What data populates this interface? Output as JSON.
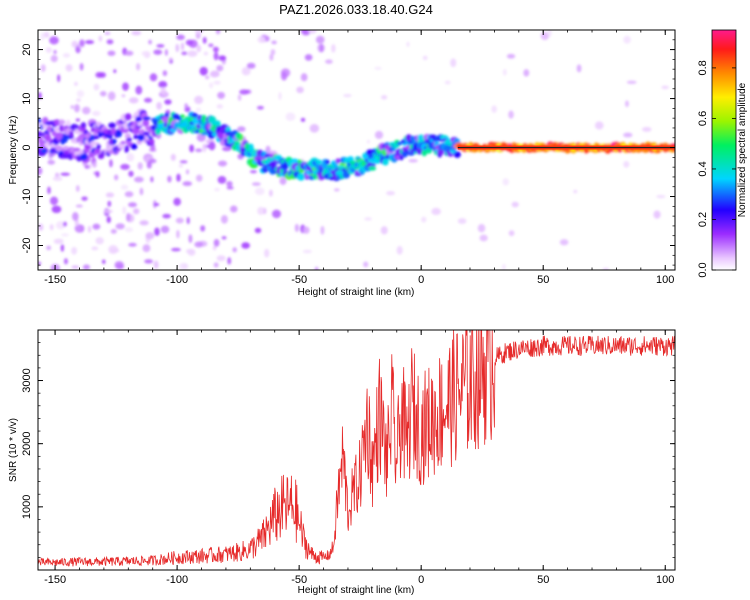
{
  "title": "PAZ1.2026.033.18.40.G24",
  "chart_data": [
    {
      "type": "heatmap",
      "xlabel": "Height of straight line (km)",
      "ylabel": "Frequency (Hz)",
      "xlim": [
        -157,
        104
      ],
      "ylim": [
        -25,
        24
      ],
      "xticks": [
        -150,
        -100,
        -50,
        0,
        50,
        100
      ],
      "yticks": [
        -20,
        -10,
        0,
        10,
        20
      ],
      "ridge": {
        "height_km": [
          -150,
          -145,
          -140,
          -130,
          -120,
          -110,
          -105,
          -100,
          -95,
          -90,
          -85,
          -80,
          -75,
          -70,
          -65,
          -60,
          -55,
          -50,
          -45,
          -40,
          -35,
          -30,
          -25,
          -20,
          -15,
          -10,
          -5,
          0,
          5,
          10,
          15,
          20,
          40,
          60,
          80,
          100
        ],
        "frequency_hz": [
          2,
          1.5,
          1,
          1.5,
          3,
          4,
          5,
          5,
          5.5,
          4.5,
          4,
          2.5,
          1,
          -1.5,
          -3,
          -3.5,
          -4,
          -4.5,
          -4.5,
          -4.5,
          -4.5,
          -4,
          -3.5,
          -2.5,
          -1.5,
          -0.5,
          0.5,
          0.5,
          0.5,
          0.5,
          0,
          0,
          0,
          0,
          0,
          0
        ]
      },
      "colorbar": {
        "label": "Normalized spectral amplitude",
        "range": [
          0,
          0.95
        ],
        "ticks": [
          "0.0",
          "0.2",
          "0.4",
          "0.6",
          "0.8"
        ]
      }
    },
    {
      "type": "line",
      "xlabel": "Height of straight line (km)",
      "ylabel": "SNR (10 * v/v)",
      "xlim": [
        -157,
        104
      ],
      "ylim": [
        0,
        3800
      ],
      "xticks": [
        -150,
        -100,
        -50,
        0,
        50,
        100
      ],
      "yticks": [
        1000,
        2000,
        3000
      ],
      "color": "#e62a2a",
      "series": [
        {
          "name": "SNR",
          "x": [
            -157,
            -150,
            -140,
            -130,
            -120,
            -110,
            -100,
            -90,
            -80,
            -75,
            -70,
            -65,
            -60,
            -57,
            -54,
            -52,
            -50,
            -48,
            -45,
            -42,
            -40,
            -38,
            -36,
            -34,
            -32,
            -30,
            -28,
            -25,
            -22,
            -20,
            -17,
            -14,
            -12,
            -10,
            -8,
            -6,
            -4,
            -2,
            0,
            2,
            5,
            10,
            15,
            20,
            25,
            30,
            35,
            40,
            50,
            60,
            70,
            80,
            90,
            100,
            104
          ],
          "y": [
            120,
            120,
            130,
            130,
            140,
            150,
            200,
            220,
            250,
            280,
            330,
            500,
            850,
            980,
            1000,
            1020,
            750,
            450,
            250,
            200,
            200,
            230,
            350,
            1200,
            1800,
            900,
            1200,
            1500,
            2400,
            1600,
            2500,
            1700,
            2500,
            1700,
            2600,
            1900,
            2600,
            2400,
            2200,
            2300,
            2400,
            2600,
            2800,
            3000,
            3200,
            3350,
            3450,
            3500,
            3550,
            3550,
            3550,
            3550,
            3550,
            3550,
            3550
          ]
        }
      ]
    }
  ]
}
